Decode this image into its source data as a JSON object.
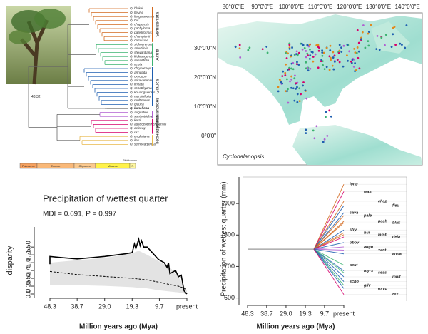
{
  "phylogeny": {
    "node_label": "48.32",
    "epochs": [
      "Paleocene",
      "Eocene",
      "Oligocene",
      "Miocene",
      "P."
    ],
    "epoch_note": "Pleistocene",
    "clades": [
      {
        "name": "Semiserrata",
        "color": "#d2691e",
        "tips": [
          "Q. blakei",
          "Q. fleuryi",
          "Q. langbianensis",
          "Q. hui",
          "Q. chapensis",
          "Q. pachyloma",
          "Q. patelliformis",
          "Q. championii",
          "Q. camusiae"
        ]
      },
      {
        "name": "Acuta",
        "color": "#3cb371",
        "tips": [
          "Q. sichourensis",
          "Q. arbutifolia",
          "Q. stewardiana",
          "Q. kiukiangensis",
          "Q. sessilifolia",
          "Q. acuta"
        ]
      },
      {
        "name": "Glauca",
        "color": "#1f5fb0",
        "tips": [
          "Q. chrysocalyx",
          "Q. annulata",
          "Q. oxyodon",
          "Q. saravanensis",
          "Q. lineata",
          "Q. schottkyana",
          "Q. kouangsiensis",
          "Q. myrsinifolia",
          "Q. multinervis",
          "Q. glauca"
        ]
      },
      {
        "color": "#000000",
        "tips": [
          "Q. lamellosa"
        ]
      },
      {
        "name": "Cyclobalanoides",
        "color": "#b05fd0",
        "tips": [
          "Q. augustinii",
          "Q. xanthotricha"
        ]
      },
      {
        "name": "Helferiana",
        "color": "#d6006b",
        "tips": [
          "Q. kerrii",
          "Q. austrocochinchinensis",
          "Q. delavayi",
          "Q. rex"
        ]
      },
      {
        "name": "Ilex",
        "color": "#e8b84a",
        "tips": [
          "Q. engleriana",
          "Q. ilex",
          "Q. semecarpifolia"
        ]
      }
    ]
  },
  "map": {
    "title": "Cyclobalanopsis",
    "lon_labels": [
      "80°0'0\"E",
      "90°0'0\"E",
      "100°0'0\"E",
      "110°0'0\"E",
      "120°0'0\"E",
      "130°0'0\"E",
      "140°0'0\"E"
    ],
    "lat_labels": [
      "30°0'0\"N",
      "20°0'0\"N",
      "10°0'0\"N",
      "0°0'0\""
    ]
  },
  "chart_data": [
    {
      "type": "line",
      "title": "Precipitation of wettest quarter",
      "subtitle": "MDI = 0.691, P = 0.997",
      "y_label": "disparity",
      "x_label": "Million years ago (Mya)",
      "xlim": [
        48.3,
        0
      ],
      "ylim": [
        0,
        1.8
      ],
      "xticks": [
        48.3,
        38.7,
        {
          "value": 29,
          "label": "29.0"
        },
        19.3,
        9.7,
        {
          "value": 0,
          "label": "present"
        }
      ],
      "yticks": [
        {
          "value": 0,
          "label": "0.0"
        },
        0.25,
        {
          "value": 0.5,
          "label": "0.50"
        },
        0.75,
        {
          "value": 1,
          "label": "1.0"
        },
        1.25,
        {
          "value": 1.5,
          "label": "1.50"
        }
      ],
      "band": {
        "color": "#e3e3e3",
        "x": [
          48.3,
          38.7,
          29,
          19.3,
          17,
          14,
          10,
          6,
          3,
          0
        ],
        "lower": [
          0.28,
          0.28,
          0.26,
          0.22,
          0.2,
          0.18,
          0.12,
          0.08,
          0.05,
          0
        ],
        "upper": [
          1.0,
          1.08,
          1.15,
          1.3,
          1.38,
          1.25,
          1.05,
          0.85,
          0.55,
          0.1
        ]
      },
      "series": [
        {
          "color": "#000000",
          "style": "solid",
          "x": [
            48.3,
            48.3,
            45,
            38.7,
            29,
            22,
            19.3,
            18.5,
            18,
            17,
            16.5,
            16,
            15.2,
            14,
            13,
            10,
            8,
            7,
            6.5,
            6,
            4,
            3,
            2,
            1,
            0
          ],
          "values": [
            0.95,
            1.2,
            1.17,
            1.12,
            1.2,
            1.28,
            1.32,
            1.6,
            1.45,
            1.75,
            1.55,
            1.7,
            1.5,
            1.5,
            1.4,
            1.1,
            1.0,
            0.85,
            1.0,
            0.65,
            0.75,
            0.55,
            0.6,
            0.1,
            0
          ]
        },
        {
          "color": "#000000",
          "style": "dashed",
          "x": [
            48.3,
            38.7,
            29,
            19.3,
            14,
            10,
            6,
            3,
            0
          ],
          "values": [
            0.72,
            0.62,
            0.56,
            0.5,
            0.45,
            0.38,
            0.3,
            0.25,
            0.15
          ]
        }
      ]
    },
    {
      "type": "traitgram",
      "y_label": "Precipitation of wettest quarter (mm)",
      "x_label": "Million years ago (Mya)",
      "xlim": [
        48.3,
        0
      ],
      "ylim": [
        590,
        975
      ],
      "xticks": [
        48.3,
        38.7,
        {
          "value": 29,
          "label": "29.0"
        },
        19.3,
        9.7,
        {
          "value": 0,
          "label": "present"
        }
      ],
      "yticks": [
        600,
        700,
        800,
        900
      ],
      "ancestral": {
        "color": "#999999",
        "x": [
          48.3,
          15
        ],
        "values": [
          755,
          755
        ]
      },
      "tips": [
        {
          "name": "long",
          "color": "#d2691e",
          "value": 961
        },
        {
          "name": "wast",
          "color": "#d6006b",
          "value": 938
        },
        {
          "name": "chap",
          "color": "#d2691e",
          "value": 907
        },
        {
          "name": "fleu",
          "color": "#1f5fb0",
          "value": 893
        },
        {
          "name": "sava",
          "color": "#1f5fb0",
          "value": 871
        },
        {
          "name": "pale",
          "color": "#d2691e",
          "value": 862
        },
        {
          "name": "pach",
          "color": "#d2691e",
          "value": 844
        },
        {
          "name": "blak",
          "color": "#d2691e",
          "value": 839
        },
        {
          "name": "stry",
          "color": "#1f5fb0",
          "value": 816
        },
        {
          "name": "hui",
          "color": "#d2691e",
          "value": 807
        },
        {
          "name": "lamb",
          "color": "#d2691e",
          "value": 801
        },
        {
          "name": "dela",
          "color": "#d6006b",
          "value": 794
        },
        {
          "name": "obov",
          "color": "#1f5fb0",
          "value": 776
        },
        {
          "name": "augu",
          "color": "#b05fd0",
          "value": 762
        },
        {
          "name": "xant",
          "color": "#b05fd0",
          "value": 752
        },
        {
          "name": "anna",
          "color": "#1f5fb0",
          "value": 740
        },
        {
          "name": "acut",
          "color": "#3cb371",
          "value": 704
        },
        {
          "name": "myrs",
          "color": "#1f5fb0",
          "value": 686
        },
        {
          "name": "sess",
          "color": "#3cb371",
          "value": 680
        },
        {
          "name": "mult",
          "color": "#1f5fb0",
          "value": 667
        },
        {
          "name": "scho",
          "color": "#1f5fb0",
          "value": 652
        },
        {
          "name": "gilv",
          "color": "#3cb371",
          "value": 640
        },
        {
          "name": "oxyo",
          "color": "#1f5fb0",
          "value": 630
        },
        {
          "name": "rex",
          "color": "#d6006b",
          "value": 611
        }
      ]
    }
  ]
}
